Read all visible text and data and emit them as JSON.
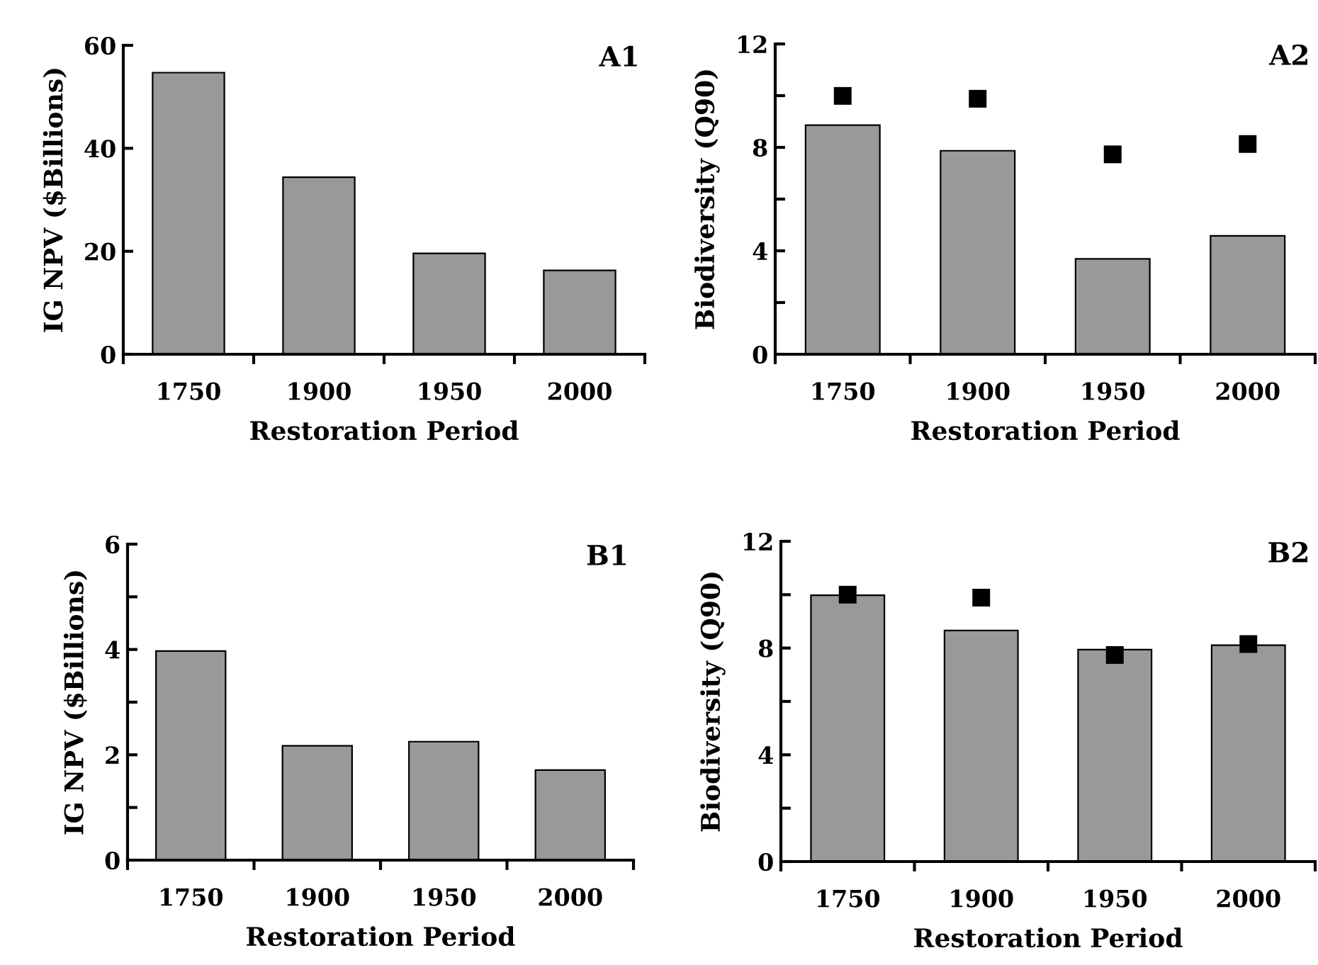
{
  "chart_data": [
    {
      "type": "bar",
      "categories": [
        "1750",
        "1900",
        "1950",
        "2000"
      ],
      "xlabel": "Restoration Period",
      "ylabel": "IG NPV ($Billions)",
      "annotations": [
        "A1"
      ],
      "ylim": [
        0,
        60
      ],
      "yticks": [
        0,
        20,
        40,
        60
      ],
      "grid": false,
      "legend": false,
      "series": [
        {
          "color": "#999999",
          "values": [
            54.7,
            34.4,
            19.6,
            16.3
          ]
        }
      ]
    },
    {
      "type": "bar",
      "categories": [
        "1750",
        "1900",
        "1950",
        "2000"
      ],
      "xlabel": "Restoration Period",
      "ylabel": "Biodiversity (Q90)",
      "annotations": [
        "A2"
      ],
      "ylim": [
        0,
        12
      ],
      "yticks": [
        0,
        {
          "value": 2,
          "label": null
        },
        4,
        {
          "value": 6,
          "label": null
        },
        8,
        {
          "value": 10,
          "label": null
        },
        12
      ],
      "grid": false,
      "legend": false,
      "series": [
        {
          "color": "#999999",
          "values": [
            8.86,
            7.87,
            3.69,
            4.58
          ]
        },
        {
          "type": "scatter",
          "marker": "square",
          "color": "#000000",
          "values": [
            9.99,
            9.88,
            7.73,
            8.13
          ]
        }
      ]
    },
    {
      "type": "bar",
      "categories": [
        "1750",
        "1900",
        "1950",
        "2000"
      ],
      "xlabel": "Restoration Period",
      "ylabel": "IG NPV ($Billions)",
      "annotations": [
        "B1"
      ],
      "ylim": [
        0,
        6
      ],
      "yticks": [
        0,
        {
          "value": 1,
          "label": null
        },
        2,
        {
          "value": 3,
          "label": null
        },
        4,
        {
          "value": 5,
          "label": null
        },
        6
      ],
      "grid": false,
      "legend": false,
      "series": [
        {
          "color": "#999999",
          "values": [
            3.97,
            2.17,
            2.25,
            1.71
          ]
        }
      ]
    },
    {
      "type": "bar",
      "categories": [
        "1750",
        "1900",
        "1950",
        "2000"
      ],
      "xlabel": "Restoration Period",
      "ylabel": "Biodiversity (Q90)",
      "annotations": [
        "B2"
      ],
      "ylim": [
        0,
        12
      ],
      "yticks": [
        0,
        {
          "value": 2,
          "label": null
        },
        4,
        {
          "value": 6,
          "label": null
        },
        8,
        {
          "value": 10,
          "label": null
        },
        12
      ],
      "grid": false,
      "legend": false,
      "series": [
        {
          "color": "#999999",
          "values": [
            9.98,
            8.66,
            7.94,
            8.11
          ]
        },
        {
          "type": "scatter",
          "marker": "square",
          "color": "#000000",
          "values": [
            10.0,
            9.89,
            7.74,
            8.15
          ]
        }
      ]
    }
  ]
}
